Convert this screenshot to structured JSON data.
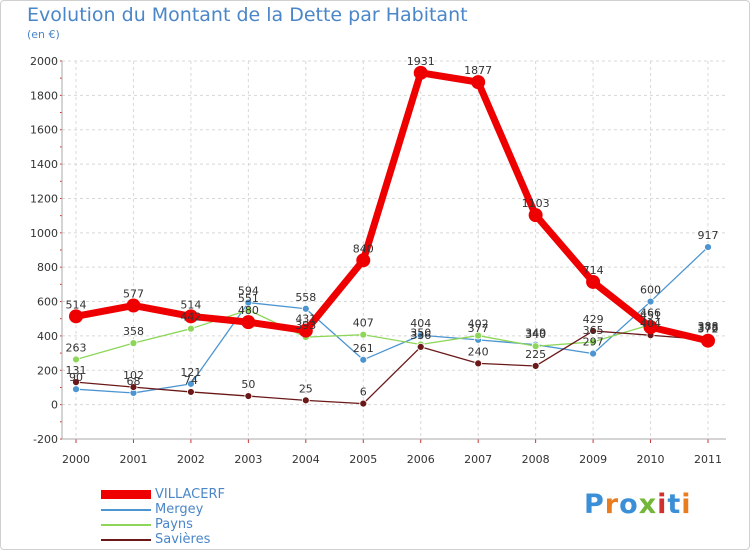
{
  "title": "Evolution du Montant de la Dette par Habitant",
  "subtitle": "(en €)",
  "logo_text": "Proxiti",
  "logo_colors": [
    "#3a8fd6",
    "#e87c1e",
    "#3a8fd6",
    "#74b63a",
    "#d22f2f",
    "#3a8fd6",
    "#e87c1e"
  ],
  "chart_data": {
    "type": "line",
    "title": "Evolution du Montant de la Dette par Habitant",
    "ylabel": "(en €)",
    "xlabel": "",
    "categories": [
      "2000",
      "2001",
      "2002",
      "2003",
      "2004",
      "2005",
      "2006",
      "2007",
      "2008",
      "2009",
      "2010",
      "2011"
    ],
    "ylim": [
      -200,
      2000
    ],
    "yticks": [
      "2000",
      "1800",
      "1600",
      "1400",
      "1200",
      "1000",
      "800",
      "600",
      "400",
      "200",
      "0",
      "-200"
    ],
    "grid": true,
    "legend_position": "bottom-left",
    "series": [
      {
        "name": "VILLACERF",
        "color": "#ee0000",
        "values": [
          514,
          577,
          514,
          480,
          431,
          840,
          1931,
          1877,
          1103,
          714,
          451,
          372
        ],
        "labels": [
          "514",
          "577",
          "514",
          "480",
          "431",
          "840",
          "1931",
          "1877",
          "1103",
          "714",
          "451",
          "372"
        ]
      },
      {
        "name": "Mergey",
        "color": "#4d95d0",
        "values": [
          90,
          68,
          121,
          594,
          558,
          261,
          404,
          377,
          349,
          297,
          600,
          917
        ],
        "labels": [
          "90",
          "68",
          "121",
          "594",
          "558",
          "261",
          "404",
          "377",
          "349",
          "297",
          "600",
          "917"
        ]
      },
      {
        "name": "Payns",
        "color": "#8ed65a",
        "values": [
          263,
          358,
          442,
          551,
          393,
          407,
          350,
          402,
          340,
          365,
          466,
          388
        ],
        "labels": [
          "263",
          "358",
          "442",
          "551",
          "393",
          "407",
          "350",
          "402",
          "340",
          "365",
          "466",
          "388"
        ]
      },
      {
        "name": "Savières",
        "color": "#6b1818",
        "values": [
          131,
          102,
          74,
          50,
          25,
          6,
          336,
          240,
          225,
          429,
          404,
          378
        ],
        "labels": [
          "131",
          "102",
          "74",
          "50",
          "25",
          "6",
          "336",
          "240",
          "225",
          "429",
          "404",
          "378"
        ]
      }
    ]
  }
}
